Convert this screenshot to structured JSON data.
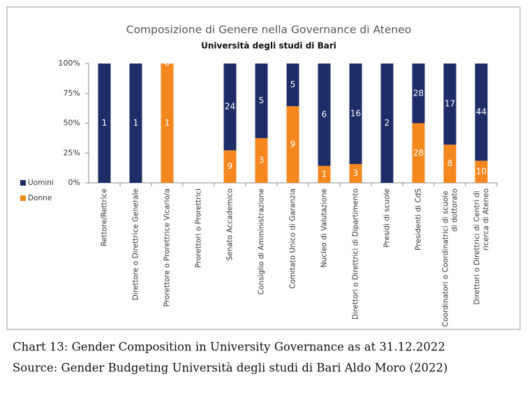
{
  "chart_data": {
    "type": "bar",
    "stacked": "percent",
    "title": "Composizione di Genere nella Governance di Ateneo",
    "subtitle": "Università degli studi di Bari",
    "categories": [
      "Rettore/Rettrice",
      "Direttore o Direttrice Generale",
      "Prorettore o Prorettrice Vicario/a",
      "Prorettori o Prorettrici",
      "Senato Accademico",
      "Consiglio di Amministrazione",
      "Comitato Unico di Garanzia",
      "Nucleo di Valutazione",
      "Direttori o Direttrici di Dipartimento",
      "Presidi di scuole",
      "Presidenti di CdS",
      "Coordinatori o Coordinatrici di scuole di dottorato",
      "Direttori o Direttrici di Centri di ricerca di Ateneo"
    ],
    "series": [
      {
        "name": "Uomini",
        "color": "#1c2d68",
        "values": [
          1,
          1,
          0,
          null,
          24,
          5,
          5,
          6,
          16,
          2,
          28,
          17,
          44
        ]
      },
      {
        "name": "Donne",
        "color": "#f5871f",
        "values": [
          0,
          0,
          1,
          null,
          9,
          3,
          9,
          1,
          3,
          0,
          28,
          8,
          10
        ]
      }
    ],
    "ylim": [
      0,
      100
    ],
    "yticks": [
      {
        "value": 0,
        "label": "0%"
      },
      {
        "value": 25,
        "label": "25%"
      },
      {
        "value": 50,
        "label": "50%"
      },
      {
        "value": 75,
        "label": "75%"
      },
      {
        "value": 100,
        "label": "100%"
      }
    ],
    "legend": "left"
  },
  "caption": [
    "Chart 13: Gender Composition in University Governance as at 31.12.2022",
    "Source: Gender Budgeting Università degli studi di Bari Aldo Moro (2022)"
  ]
}
